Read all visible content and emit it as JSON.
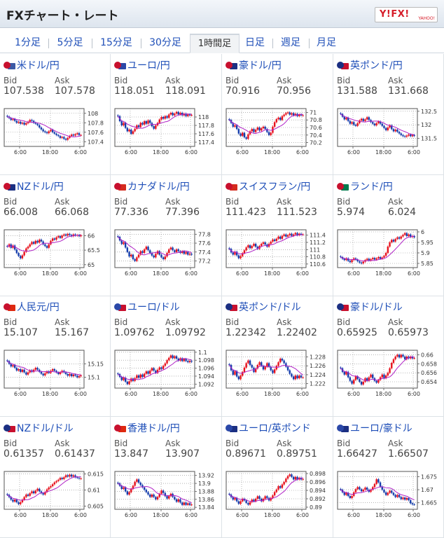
{
  "header": {
    "title": "FXチャート・レート",
    "logo_text": "Y!FX!",
    "logo_sub": "YAHOO!"
  },
  "tabs": [
    "1分足",
    "5分足",
    "15分足",
    "30分足",
    "1時間足",
    "日足",
    "週足",
    "月足"
  ],
  "active_tab": "1時間足",
  "labels": {
    "bid": "Bid",
    "ask": "Ask"
  },
  "x_ticks": [
    "6:00",
    "18:00",
    "6:00"
  ],
  "colors": {
    "up": "#e8101c",
    "down": "#153dac",
    "ma": "#b021c6",
    "link": "#1f4fb8"
  },
  "pairs": [
    {
      "name": "米ドル/円",
      "flags": [
        "#c8102e",
        "#3c5aa6"
      ],
      "bid": "107.538",
      "ask": "107.578",
      "yticks": [
        "108",
        "107.8",
        "107.6",
        "107.4"
      ],
      "ylim": [
        107.3,
        108.1
      ],
      "closes": [
        107.93,
        107.9,
        107.86,
        107.88,
        107.84,
        107.8,
        107.82,
        107.78,
        107.8,
        107.76,
        107.79,
        107.82,
        107.86,
        107.84,
        107.8,
        107.78,
        107.75,
        107.7,
        107.66,
        107.62,
        107.6,
        107.58,
        107.62,
        107.65,
        107.6,
        107.57,
        107.54,
        107.52,
        107.48,
        107.5,
        107.46,
        107.44,
        107.48,
        107.52,
        107.55,
        107.53,
        107.56,
        107.58,
        107.54,
        107.54
      ]
    },
    {
      "name": "ユーロ/円",
      "flags": [
        "#c8102e",
        "#2b48a8"
      ],
      "bid": "118.051",
      "ask": "118.091",
      "yticks": [
        "118",
        "117.8",
        "117.6",
        "117.4"
      ],
      "ylim": [
        117.3,
        118.2
      ],
      "closes": [
        118.02,
        117.9,
        117.8,
        117.86,
        117.74,
        117.66,
        117.7,
        117.6,
        117.66,
        117.72,
        117.8,
        117.76,
        117.86,
        117.82,
        117.9,
        117.84,
        117.92,
        117.86,
        117.78,
        117.72,
        117.8,
        117.86,
        117.94,
        118.0,
        117.96,
        118.02,
        117.98,
        118.06,
        118.1,
        118.04,
        118.08,
        118.12,
        118.06,
        118.1,
        118.04,
        118.08,
        118.02,
        118.06,
        118.04,
        118.05
      ]
    },
    {
      "name": "豪ドル/円",
      "flags": [
        "#c8102e",
        "#1b2f82"
      ],
      "bid": "70.916",
      "ask": "70.956",
      "yticks": [
        "71",
        "70.8",
        "70.6",
        "70.4",
        "70.2"
      ],
      "ylim": [
        70.1,
        71.1
      ],
      "closes": [
        70.8,
        70.72,
        70.62,
        70.66,
        70.56,
        70.44,
        70.38,
        70.46,
        70.34,
        70.3,
        70.42,
        70.5,
        70.56,
        70.48,
        70.54,
        70.6,
        70.52,
        70.58,
        70.62,
        70.56,
        70.48,
        70.4,
        70.46,
        70.62,
        70.74,
        70.82,
        70.86,
        70.8,
        70.9,
        70.94,
        70.98,
        71.0,
        70.94,
        70.98,
        70.92,
        70.96,
        70.9,
        70.94,
        70.92,
        70.92
      ]
    },
    {
      "name": "英ポンド/円",
      "flags": [
        "#1b2f82",
        "#c8102e"
      ],
      "bid": "131.588",
      "ask": "131.668",
      "yticks": [
        "132.5",
        "132",
        "131.5"
      ],
      "ylim": [
        131.2,
        132.6
      ],
      "closes": [
        132.4,
        132.3,
        132.2,
        132.26,
        132.14,
        132.04,
        132.1,
        132.0,
        131.96,
        132.06,
        132.16,
        132.22,
        132.14,
        132.2,
        132.28,
        132.18,
        132.1,
        132.04,
        131.98,
        132.06,
        132.12,
        132.04,
        131.96,
        131.88,
        131.8,
        131.9,
        131.98,
        131.84,
        131.76,
        131.82,
        131.74,
        131.68,
        131.62,
        131.58,
        131.56,
        131.6,
        131.64,
        131.58,
        131.62,
        131.59
      ]
    },
    {
      "name": "NZドル/円",
      "flags": [
        "#c8102e",
        "#1b2f82"
      ],
      "bid": "66.008",
      "ask": "66.068",
      "yticks": [
        "66",
        "65.5",
        "65"
      ],
      "ylim": [
        64.9,
        66.2
      ],
      "closes": [
        65.62,
        65.7,
        65.58,
        65.66,
        65.52,
        65.4,
        65.3,
        65.22,
        65.32,
        65.44,
        65.56,
        65.62,
        65.7,
        65.78,
        65.72,
        65.82,
        65.76,
        65.86,
        65.8,
        65.7,
        65.64,
        65.58,
        65.7,
        65.82,
        65.9,
        65.86,
        65.94,
        65.98,
        65.92,
        66.0,
        66.04,
        66.0,
        66.06,
        66.02,
        65.98,
        66.04,
        66.0,
        66.02,
        65.98,
        66.01
      ]
    },
    {
      "name": "カナダドル/円",
      "flags": [
        "#c8102e",
        "#d52b1e"
      ],
      "bid": "77.336",
      "ask": "77.396",
      "yticks": [
        "77.8",
        "77.6",
        "77.4",
        "77.2"
      ],
      "ylim": [
        77.05,
        77.9
      ],
      "closes": [
        77.74,
        77.66,
        77.58,
        77.62,
        77.5,
        77.4,
        77.3,
        77.34,
        77.24,
        77.2,
        77.28,
        77.34,
        77.42,
        77.38,
        77.46,
        77.52,
        77.44,
        77.38,
        77.32,
        77.28,
        77.36,
        77.42,
        77.34,
        77.28,
        77.24,
        77.3,
        77.38,
        77.46,
        77.5,
        77.44,
        77.4,
        77.46,
        77.42,
        77.38,
        77.42,
        77.36,
        77.4,
        77.34,
        77.36,
        77.34
      ]
    },
    {
      "name": "スイスフラン/円",
      "flags": [
        "#c8102e",
        "#d52b1e"
      ],
      "bid": "111.423",
      "ask": "111.523",
      "yticks": [
        "111.4",
        "111.2",
        "111",
        "110.8",
        "110.6"
      ],
      "ylim": [
        110.5,
        111.55
      ],
      "closes": [
        111.02,
        110.92,
        110.86,
        110.94,
        110.84,
        110.76,
        110.82,
        110.9,
        110.98,
        111.06,
        111.12,
        111.04,
        111.1,
        111.16,
        111.08,
        111.02,
        111.1,
        111.16,
        111.2,
        111.14,
        111.08,
        111.16,
        111.22,
        111.28,
        111.24,
        111.3,
        111.36,
        111.3,
        111.38,
        111.42,
        111.36,
        111.4,
        111.44,
        111.38,
        111.42,
        111.46,
        111.4,
        111.44,
        111.42,
        111.42
      ]
    },
    {
      "name": "ランド/円",
      "flags": [
        "#c8102e",
        "#007a4d"
      ],
      "bid": "5.974",
      "ask": "6.024",
      "yticks": [
        "6",
        "5.95",
        "5.9",
        "5.85"
      ],
      "ylim": [
        5.83,
        6.01
      ],
      "closes": [
        5.88,
        5.872,
        5.866,
        5.874,
        5.862,
        5.856,
        5.866,
        5.874,
        5.868,
        5.86,
        5.854,
        5.85,
        5.858,
        5.866,
        5.872,
        5.864,
        5.87,
        5.876,
        5.868,
        5.874,
        5.88,
        5.872,
        5.878,
        5.886,
        5.9,
        5.93,
        5.95,
        5.962,
        5.954,
        5.966,
        5.974,
        5.968,
        5.978,
        5.986,
        5.994,
        5.98,
        5.988,
        5.976,
        5.98,
        5.974
      ]
    },
    {
      "name": "人民元/円",
      "flags": [
        "#c8102e",
        "#de2910"
      ],
      "bid": "15.107",
      "ask": "15.167",
      "yticks": [
        "15.15",
        "15.1"
      ],
      "ylim": [
        15.06,
        15.2
      ],
      "closes": [
        15.16,
        15.15,
        15.14,
        15.145,
        15.135,
        15.125,
        15.13,
        15.12,
        15.128,
        15.118,
        15.11,
        15.118,
        15.126,
        15.12,
        15.128,
        15.135,
        15.128,
        15.12,
        15.113,
        15.107,
        15.115,
        15.122,
        15.116,
        15.124,
        15.13,
        15.124,
        15.118,
        15.112,
        15.118,
        15.124,
        15.118,
        15.112,
        15.106,
        15.112,
        15.104,
        15.11,
        15.106,
        15.1,
        15.104,
        15.107
      ]
    },
    {
      "name": "ユーロ/ドル",
      "flags": [
        "#2b48a8",
        "#c8102e"
      ],
      "bid": "1.09762",
      "ask": "1.09792",
      "yticks": [
        "1.1",
        "1.098",
        "1.096",
        "1.094",
        "1.092"
      ],
      "ylim": [
        1.091,
        1.1005
      ],
      "closes": [
        1.0945,
        1.0938,
        1.093,
        1.0936,
        1.0926,
        1.092,
        1.0927,
        1.0934,
        1.0928,
        1.0935,
        1.0942,
        1.0936,
        1.0944,
        1.0938,
        1.0946,
        1.0952,
        1.0946,
        1.0954,
        1.096,
        1.0954,
        1.0948,
        1.0956,
        1.0962,
        1.0958,
        1.0966,
        1.0972,
        1.098,
        1.0986,
        1.0992,
        1.0985,
        1.099,
        1.0984,
        1.0979,
        1.0985,
        1.0978,
        1.0983,
        1.0978,
        1.0975,
        1.0978,
        1.0976
      ]
    },
    {
      "name": "英ポンド/ドル",
      "flags": [
        "#1b2f82",
        "#c8102e"
      ],
      "bid": "1.22342",
      "ask": "1.22402",
      "yticks": [
        "1.228",
        "1.226",
        "1.224",
        "1.222"
      ],
      "ylim": [
        1.221,
        1.2295
      ],
      "closes": [
        1.2262,
        1.225,
        1.224,
        1.2248,
        1.2236,
        1.223,
        1.2238,
        1.2246,
        1.2256,
        1.2266,
        1.2272,
        1.2262,
        1.2256,
        1.2246,
        1.2254,
        1.2262,
        1.2268,
        1.226,
        1.2252,
        1.2258,
        1.2266,
        1.2258,
        1.225,
        1.2244,
        1.2252,
        1.226,
        1.2268,
        1.2276,
        1.2272,
        1.2266,
        1.2258,
        1.225,
        1.2242,
        1.2236,
        1.223,
        1.2238,
        1.2232,
        1.2238,
        1.2234,
        1.2234
      ]
    },
    {
      "name": "豪ドル/ドル",
      "flags": [
        "#1b2f82",
        "#c8102e"
      ],
      "bid": "0.65925",
      "ask": "0.65973",
      "yticks": [
        "0.66",
        "0.658",
        "0.656",
        "0.654"
      ],
      "ylim": [
        0.6526,
        0.661
      ],
      "closes": [
        0.657,
        0.6562,
        0.6556,
        0.6562,
        0.655,
        0.6542,
        0.6536,
        0.6544,
        0.6552,
        0.6546,
        0.654,
        0.6534,
        0.654,
        0.6548,
        0.6542,
        0.655,
        0.6556,
        0.6548,
        0.6542,
        0.6538,
        0.6544,
        0.655,
        0.6556,
        0.6548,
        0.6554,
        0.656,
        0.657,
        0.6582,
        0.659,
        0.6596,
        0.66,
        0.6594,
        0.66,
        0.6596,
        0.659,
        0.6596,
        0.6592,
        0.6596,
        0.6592,
        0.6593
      ]
    },
    {
      "name": "NZドル/ドル",
      "flags": [
        "#1b2f82",
        "#c8102e"
      ],
      "bid": "0.61357",
      "ask": "0.61437",
      "yticks": [
        "0.615",
        "0.61",
        "0.605"
      ],
      "ylim": [
        0.604,
        0.6158
      ],
      "closes": [
        0.6085,
        0.6078,
        0.607,
        0.6064,
        0.607,
        0.6062,
        0.6056,
        0.6062,
        0.607,
        0.6078,
        0.6086,
        0.6082,
        0.609,
        0.6096,
        0.609,
        0.6098,
        0.6104,
        0.6096,
        0.609,
        0.6086,
        0.6094,
        0.6102,
        0.6108,
        0.6112,
        0.6118,
        0.6124,
        0.6128,
        0.6132,
        0.6138,
        0.6134,
        0.614,
        0.6146,
        0.6142,
        0.6148,
        0.6142,
        0.6146,
        0.614,
        0.6138,
        0.6136,
        0.6136
      ]
    },
    {
      "name": "香港ドル/円",
      "flags": [
        "#c8102e",
        "#de2910"
      ],
      "bid": "13.847",
      "ask": "13.907",
      "yticks": [
        "13.92",
        "13.9",
        "13.88",
        "13.86",
        "13.84"
      ],
      "ylim": [
        13.835,
        13.93
      ],
      "closes": [
        13.9,
        13.894,
        13.886,
        13.89,
        13.88,
        13.872,
        13.878,
        13.886,
        13.894,
        13.904,
        13.91,
        13.902,
        13.896,
        13.89,
        13.884,
        13.878,
        13.872,
        13.866,
        13.872,
        13.866,
        13.86,
        13.866,
        13.874,
        13.882,
        13.876,
        13.868,
        13.862,
        13.868,
        13.874,
        13.866,
        13.86,
        13.854,
        13.86,
        13.852,
        13.846,
        13.852,
        13.846,
        13.85,
        13.846,
        13.847
      ]
    },
    {
      "name": "ユーロ/英ポンド",
      "flags": [
        "#2b48a8",
        "#1b2f82"
      ],
      "bid": "0.89671",
      "ask": "0.89751",
      "yticks": [
        "0.898",
        "0.896",
        "0.894",
        "0.892",
        "0.89"
      ],
      "ylim": [
        0.8895,
        0.8985
      ],
      "closes": [
        0.893,
        0.8924,
        0.8918,
        0.8922,
        0.8914,
        0.8908,
        0.8914,
        0.892,
        0.8916,
        0.891,
        0.8906,
        0.8912,
        0.8918,
        0.8914,
        0.892,
        0.8926,
        0.892,
        0.8914,
        0.892,
        0.8926,
        0.8922,
        0.8916,
        0.8922,
        0.8928,
        0.8936,
        0.8942,
        0.895,
        0.8946,
        0.8954,
        0.896,
        0.8968,
        0.8974,
        0.8978,
        0.8972,
        0.8966,
        0.8972,
        0.8966,
        0.897,
        0.8966,
        0.8967
      ]
    },
    {
      "name": "ユーロ/豪ドル",
      "flags": [
        "#2b48a8",
        "#1b2f82"
      ],
      "bid": "1.66427",
      "ask": "1.66507",
      "yticks": [
        "1.675",
        "1.67",
        "1.665"
      ],
      "ylim": [
        1.6625,
        1.677
      ],
      "closes": [
        1.67,
        1.669,
        1.668,
        1.6688,
        1.6676,
        1.6668,
        1.6676,
        1.669,
        1.6702,
        1.671,
        1.6702,
        1.6694,
        1.67,
        1.6708,
        1.67,
        1.6692,
        1.67,
        1.671,
        1.6722,
        1.674,
        1.6728,
        1.6712,
        1.67,
        1.669,
        1.668,
        1.6688,
        1.6696,
        1.6688,
        1.668,
        1.6672,
        1.668,
        1.6672,
        1.6664,
        1.667,
        1.6662,
        1.6668,
        1.666,
        1.6648,
        1.6644,
        1.6643
      ]
    }
  ]
}
